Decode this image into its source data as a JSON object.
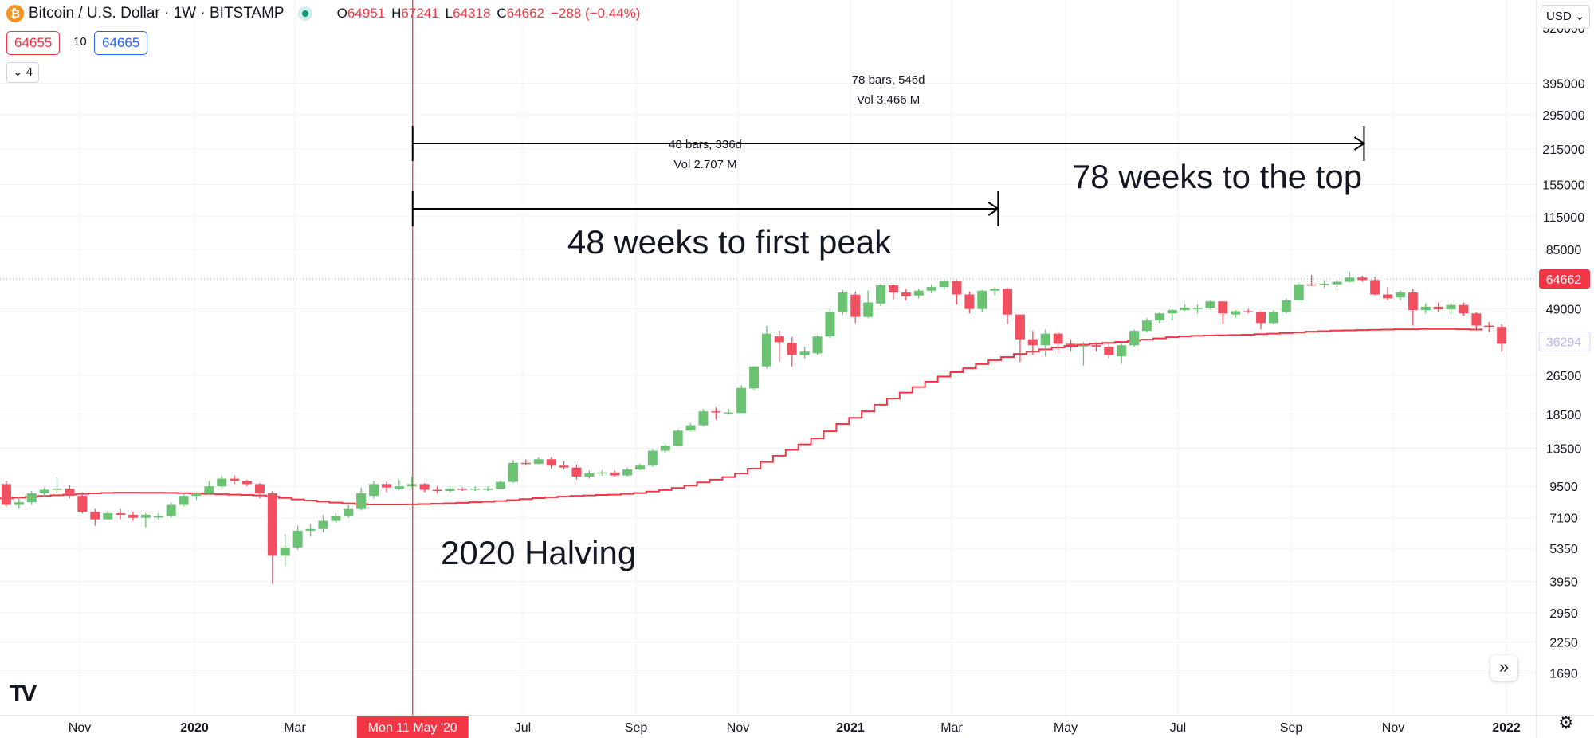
{
  "header": {
    "logo_glyph": "₿",
    "symbol": "Bitcoin / U.S. Dollar · 1W · BITSTAMP",
    "ohlc": [
      {
        "k": "O",
        "v": "64951"
      },
      {
        "k": "H",
        "v": "67241"
      },
      {
        "k": "L",
        "v": "64318"
      },
      {
        "k": "C",
        "v": "64662"
      },
      {
        "k": "",
        "v": "−288 (−0.44%)"
      }
    ],
    "bid": "64655",
    "spread": "10",
    "ask": "64665",
    "indicators_toggle": "⌄ 4",
    "currency": "USD ⌄"
  },
  "logo_text": "TV",
  "scroll_button": "»",
  "settings_glyph": "⚙",
  "colors": {
    "up": "#6ac272",
    "down": "#f0505f",
    "ma": "#f23645",
    "crosshair": "#f23645",
    "grid": "#eef0f4"
  },
  "chart_data": {
    "type": "candlestick",
    "title": "Bitcoin / U.S. Dollar · 1W · BITSTAMP",
    "y_scale": "log",
    "ylim": [
      1400,
      540000
    ],
    "y_ticks": [
      "395000",
      "295000",
      "215000",
      "155000",
      "115000",
      "85000",
      "49000",
      "26500",
      "18500",
      "13500",
      "9500",
      "7100",
      "5350",
      "3950",
      "2950",
      "2250",
      "1690"
    ],
    "x_ticks": [
      "Nov",
      "2020",
      "Mar",
      "Jul",
      "Sep",
      "Nov",
      "2021",
      "Mar",
      "May",
      "Jul",
      "Sep",
      "Nov",
      "2022"
    ],
    "x_ticks_bold": [
      "2020",
      "2021",
      "2022"
    ],
    "crosshair_label": "Mon 11 May '20",
    "last_price_label": "64662",
    "ma_price_label": "36294",
    "candles": [
      [
        9700,
        8000,
        10000,
        7900
      ],
      [
        8000,
        8200,
        8600,
        7700
      ],
      [
        8200,
        8900,
        9100,
        8000
      ],
      [
        8900,
        9200,
        9400,
        8600
      ],
      [
        9200,
        9300,
        10300,
        8900
      ],
      [
        9300,
        8700,
        9600,
        8500
      ],
      [
        8700,
        7500,
        9000,
        7400
      ],
      [
        7500,
        7000,
        7700,
        6600
      ],
      [
        7000,
        7400,
        7600,
        7000
      ],
      [
        7400,
        7300,
        7700,
        7000
      ],
      [
        7300,
        7100,
        7500,
        6900
      ],
      [
        7100,
        7300,
        7400,
        6500
      ],
      [
        7200,
        7200,
        7400,
        7000
      ],
      [
        7200,
        8000,
        8200,
        7100
      ],
      [
        8000,
        8700,
        8900,
        7900
      ],
      [
        8700,
        8900,
        9000,
        8400
      ],
      [
        8900,
        9500,
        10000,
        8800
      ],
      [
        9500,
        10200,
        10500,
        9400
      ],
      [
        10200,
        10000,
        10500,
        9700
      ],
      [
        10000,
        9700,
        10100,
        9500
      ],
      [
        9700,
        8900,
        9800,
        8500
      ],
      [
        8900,
        5000,
        9100,
        3850
      ],
      [
        5000,
        5400,
        6100,
        4500
      ],
      [
        5400,
        6300,
        6600,
        5300
      ],
      [
        6300,
        6400,
        6700,
        6000
      ],
      [
        6400,
        6900,
        7300,
        6200
      ],
      [
        6900,
        7200,
        7400,
        6800
      ],
      [
        7200,
        7700,
        8000,
        7100
      ],
      [
        7700,
        8900,
        9400,
        7600
      ],
      [
        8700,
        9700,
        10000,
        8500
      ],
      [
        9700,
        9400,
        9900,
        9000
      ],
      [
        9300,
        9500,
        10100,
        9200
      ],
      [
        9500,
        9700,
        10400,
        9400
      ],
      [
        9700,
        9200,
        9800,
        9000
      ],
      [
        9200,
        9100,
        9500,
        8900
      ],
      [
        9100,
        9300,
        9500,
        9000
      ],
      [
        9300,
        9200,
        9400,
        9100
      ],
      [
        9200,
        9300,
        9500,
        9100
      ],
      [
        9200,
        9300,
        9500,
        9100
      ],
      [
        9300,
        9900,
        10000,
        9300
      ],
      [
        9900,
        11800,
        12100,
        9800
      ],
      [
        11800,
        11700,
        12200,
        11500
      ],
      [
        11700,
        12200,
        12400,
        11600
      ],
      [
        12200,
        11500,
        12400,
        11200
      ],
      [
        11500,
        11300,
        12000,
        11100
      ],
      [
        11300,
        10400,
        11600,
        10100
      ],
      [
        10400,
        10700,
        11000,
        10200
      ],
      [
        10700,
        10800,
        11000,
        10500
      ],
      [
        10800,
        10500,
        11000,
        10400
      ],
      [
        10500,
        11100,
        11300,
        10400
      ],
      [
        11100,
        11500,
        11700,
        11000
      ],
      [
        11500,
        13200,
        13400,
        11400
      ],
      [
        13200,
        13800,
        14000,
        13000
      ],
      [
        13800,
        15900,
        16100,
        13700
      ],
      [
        15900,
        16700,
        17000,
        15800
      ],
      [
        16700,
        19000,
        19400,
        16500
      ],
      [
        19000,
        18800,
        19700,
        17600
      ],
      [
        18800,
        18800,
        19400,
        18400
      ],
      [
        18700,
        23600,
        24200,
        18700
      ],
      [
        23500,
        28800,
        28900,
        23200
      ],
      [
        28800,
        39000,
        41900,
        28200
      ],
      [
        38000,
        36000,
        40000,
        30000
      ],
      [
        35800,
        32000,
        37800,
        28800
      ],
      [
        32000,
        33000,
        34500,
        31000
      ],
      [
        32500,
        38000,
        38500,
        32000
      ],
      [
        38000,
        47500,
        49000,
        37400
      ],
      [
        47500,
        57000,
        58300,
        46500
      ],
      [
        55900,
        45500,
        57500,
        43000
      ],
      [
        45500,
        52000,
        58000,
        45000
      ],
      [
        51500,
        61000,
        61800,
        50300
      ],
      [
        61000,
        57000,
        61600,
        53500
      ],
      [
        57000,
        55000,
        59000,
        53000
      ],
      [
        55500,
        58000,
        59000,
        54000
      ],
      [
        58000,
        60000,
        61500,
        56500
      ],
      [
        60000,
        63500,
        64800,
        58500
      ],
      [
        63500,
        56000,
        64000,
        51000
      ],
      [
        56000,
        49000,
        57500,
        47000
      ],
      [
        49000,
        58000,
        58500,
        47500
      ],
      [
        58000,
        59000,
        59800,
        55500
      ],
      [
        59000,
        46500,
        59500,
        42600
      ],
      [
        46500,
        37000,
        46600,
        30000
      ],
      [
        37000,
        35000,
        40000,
        32000
      ],
      [
        35000,
        39000,
        40500,
        31500
      ],
      [
        39000,
        35500,
        39800,
        32500
      ],
      [
        35500,
        35000,
        37000,
        33000
      ],
      [
        35000,
        35000,
        36000,
        29000
      ],
      [
        35000,
        34500,
        36000,
        33000
      ],
      [
        34500,
        32000,
        35500,
        31000
      ],
      [
        31600,
        35000,
        35500,
        29500
      ],
      [
        35000,
        40000,
        40500,
        34500
      ],
      [
        40000,
        44000,
        45000,
        39500
      ],
      [
        44000,
        47000,
        47500,
        43000
      ],
      [
        47000,
        48500,
        49000,
        44000
      ],
      [
        48500,
        49500,
        51000,
        48000
      ],
      [
        49500,
        49500,
        51000,
        47000
      ],
      [
        49500,
        52500,
        53000,
        49000
      ],
      [
        52500,
        47000,
        52500,
        42600
      ],
      [
        46500,
        48000,
        48500,
        45000
      ],
      [
        48000,
        47500,
        49000,
        47000
      ],
      [
        47700,
        43000,
        48000,
        40600
      ],
      [
        43000,
        47500,
        48500,
        42500
      ],
      [
        47500,
        53000,
        54000,
        47000
      ],
      [
        53000,
        61500,
        62000,
        52800
      ],
      [
        61500,
        61000,
        67000,
        60500
      ],
      [
        61000,
        61800,
        64000,
        59500
      ],
      [
        61500,
        63000,
        64000,
        58000
      ],
      [
        63000,
        65500,
        69000,
        62500
      ],
      [
        65500,
        64000,
        66500,
        63000
      ],
      [
        64000,
        56000,
        66000,
        55500
      ],
      [
        56000,
        54000,
        60000,
        53000
      ],
      [
        54500,
        57000,
        58000,
        53000
      ],
      [
        57000,
        48500,
        59000,
        42000
      ],
      [
        48500,
        50000,
        51500,
        47000
      ],
      [
        50000,
        48800,
        52000,
        47500
      ],
      [
        48800,
        50800,
        51500,
        46500
      ],
      [
        50800,
        47000,
        52000,
        46000
      ],
      [
        47000,
        42000,
        47500,
        40800
      ],
      [
        42000,
        41500,
        43500,
        39500
      ],
      [
        41500,
        35500,
        42500,
        33000
      ]
    ],
    "ma_series": {
      "name": "moving average",
      "values": [
        8500,
        8560,
        8620,
        8690,
        8750,
        8810,
        8860,
        8900,
        8940,
        8960,
        8960,
        8950,
        8950,
        8940,
        8920,
        8890,
        8860,
        8830,
        8800,
        8770,
        8730,
        8640,
        8530,
        8420,
        8330,
        8250,
        8170,
        8110,
        8060,
        8030,
        8030,
        8030,
        8040,
        8060,
        8090,
        8120,
        8160,
        8200,
        8240,
        8290,
        8360,
        8440,
        8520,
        8590,
        8640,
        8690,
        8730,
        8770,
        8800,
        8860,
        8930,
        9050,
        9180,
        9360,
        9570,
        9850,
        10100,
        10350,
        10700,
        11200,
        11900,
        12600,
        13300,
        14000,
        14800,
        15800,
        16900,
        17900,
        19000,
        20200,
        21400,
        22600,
        23800,
        25000,
        26200,
        27300,
        28300,
        29400,
        30500,
        31400,
        32300,
        33000,
        33700,
        34300,
        34800,
        35200,
        35500,
        35800,
        36100,
        36500,
        36900,
        37300,
        37700,
        38000,
        38200,
        38300,
        38400,
        38500,
        38600,
        38800,
        39000,
        39200,
        39400,
        39700,
        39900,
        40100,
        40200,
        40300,
        40400,
        40500,
        40600,
        40600,
        40700,
        40700,
        40700,
        40600,
        40500
      ]
    },
    "measurements": [
      {
        "label": "78 bars, 546d",
        "volume": "Vol 3.466 M",
        "bars": 78,
        "annotation": "78 weeks to the top"
      },
      {
        "label": "48 bars, 336d",
        "volume": "Vol 2.707 M",
        "bars": 48,
        "annotation": "48 weeks to first peak"
      }
    ],
    "halving": {
      "label": "2020 Halving",
      "bar_index": 32
    }
  }
}
